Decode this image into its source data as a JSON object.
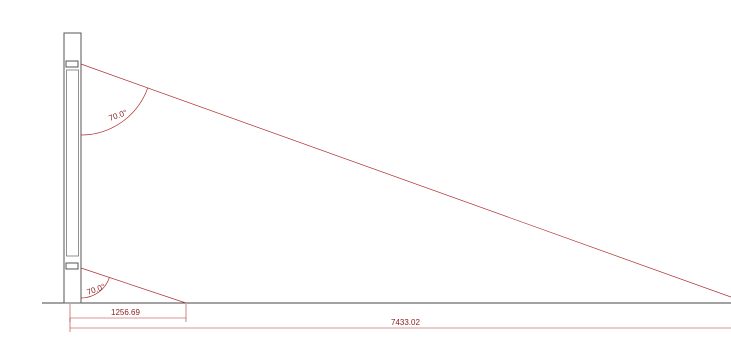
{
  "drawing": {
    "dimensions": {
      "upper_angle": "70.0°",
      "lower_angle": "70.0°",
      "short_run": "1256.69",
      "long_run": "7433.02"
    },
    "colors": {
      "outline": "#555555",
      "dimension": "#b03030",
      "dimension_text": "#8b2020",
      "ground": "#444444"
    }
  }
}
